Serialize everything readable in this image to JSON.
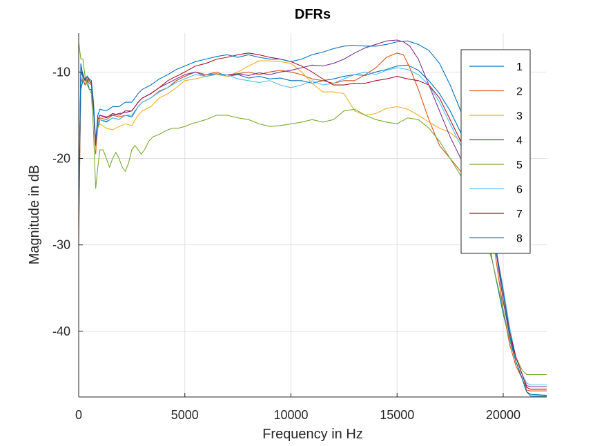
{
  "chart_data": {
    "type": "line",
    "title": "DFRs",
    "xlabel": "Frequency in Hz",
    "ylabel": "Magnitude in dB",
    "xlim": [
      0,
      22050
    ],
    "ylim": [
      -47.6,
      -5.5
    ],
    "xticks": [
      0,
      5000,
      10000,
      15000,
      20000
    ],
    "xtick_labels": [
      "0",
      "5000",
      "10000",
      "15000",
      "20000"
    ],
    "yticks": [
      -40,
      -30,
      -20,
      -10
    ],
    "ytick_labels": [
      "-40",
      "-30",
      "-20",
      "-10"
    ],
    "grid": true,
    "legend_position": "top-right",
    "series": [
      {
        "name": "1",
        "color": "#0072BD",
        "x": [
          0,
          100,
          200,
          300,
          400,
          500,
          600,
          700,
          800,
          900,
          1000,
          1300,
          1600,
          1900,
          2200,
          2500,
          2800,
          3000,
          3400,
          3800,
          4200,
          4600,
          5000,
          5500,
          6000,
          6500,
          7000,
          7500,
          8000,
          8500,
          9000,
          9500,
          10000,
          10500,
          11000,
          11500,
          12000,
          12500,
          13000,
          13500,
          14000,
          14500,
          15000,
          15500,
          16000,
          16500,
          17000,
          17500,
          18000,
          18500,
          19000,
          19500,
          20000,
          20300,
          20600,
          20900,
          21100,
          21300,
          22050
        ],
        "y": [
          -26.5,
          -12.0,
          -11.0,
          -11.5,
          -11.0,
          -12.0,
          -12.0,
          -14.5,
          -19.0,
          -16.5,
          -15.5,
          -15.8,
          -15.3,
          -15.5,
          -15.0,
          -15.2,
          -14.0,
          -13.5,
          -13.0,
          -12.3,
          -11.8,
          -11.0,
          -10.5,
          -10.0,
          -10.3,
          -10.2,
          -10.5,
          -10.3,
          -10.7,
          -10.5,
          -10.8,
          -10.7,
          -11.0,
          -11.0,
          -11.3,
          -11.0,
          -10.8,
          -10.5,
          -10.3,
          -10.4,
          -10.0,
          -9.7,
          -9.3,
          -9.2,
          -9.8,
          -11.0,
          -12.5,
          -14.5,
          -17.0,
          -20.5,
          -25.5,
          -32.0,
          -38.0,
          -41.0,
          -43.5,
          -45.5,
          -47.0,
          -47.3,
          -47.4
        ]
      },
      {
        "name": "2",
        "color": "#D95319",
        "x": [
          0,
          100,
          200,
          300,
          400,
          500,
          600,
          700,
          800,
          900,
          1000,
          1300,
          1600,
          1900,
          2200,
          2500,
          2800,
          3000,
          3400,
          3800,
          4200,
          4600,
          5000,
          5500,
          6000,
          6500,
          7000,
          7500,
          8000,
          8500,
          9000,
          9500,
          10000,
          10500,
          11000,
          11500,
          12000,
          12500,
          13000,
          13500,
          14000,
          14500,
          15000,
          15300,
          15600,
          16000,
          16500,
          17000,
          17500,
          18000,
          18500,
          19000,
          19500,
          20000,
          20300,
          20600,
          20900,
          21100,
          21300,
          22050
        ],
        "y": [
          -30.0,
          -11.2,
          -10.8,
          -11.5,
          -10.8,
          -11.3,
          -11.5,
          -14.0,
          -19.5,
          -16.0,
          -15.3,
          -15.5,
          -15.0,
          -15.2,
          -15.0,
          -15.0,
          -14.0,
          -13.5,
          -13.0,
          -12.2,
          -11.8,
          -11.0,
          -10.5,
          -10.0,
          -10.3,
          -10.0,
          -10.5,
          -10.2,
          -10.0,
          -10.3,
          -10.0,
          -9.8,
          -10.0,
          -10.3,
          -10.8,
          -11.0,
          -11.3,
          -11.0,
          -11.0,
          -10.3,
          -9.5,
          -8.3,
          -7.8,
          -8.0,
          -9.5,
          -12.0,
          -15.5,
          -18.5,
          -20.0,
          -21.5,
          -22.5,
          -24.5,
          -29.0,
          -37.5,
          -41.5,
          -44.0,
          -45.5,
          -46.8,
          -46.9,
          -46.9
        ]
      },
      {
        "name": "3",
        "color": "#EDB120",
        "x": [
          0,
          100,
          200,
          300,
          400,
          500,
          600,
          700,
          800,
          900,
          1000,
          1300,
          1600,
          1900,
          2200,
          2500,
          2800,
          3000,
          3400,
          3800,
          4200,
          4600,
          5000,
          5500,
          6000,
          6500,
          7000,
          7500,
          8000,
          8500,
          9000,
          9500,
          10000,
          10500,
          11000,
          11500,
          12000,
          12500,
          13000,
          13500,
          14000,
          14500,
          15000,
          15500,
          16000,
          16500,
          17000,
          17500,
          18000,
          18500,
          19000,
          19500,
          20000,
          20300,
          20600,
          20900,
          21100,
          21300,
          22050
        ],
        "y": [
          -27.0,
          -11.0,
          -10.5,
          -11.0,
          -10.5,
          -11.0,
          -11.3,
          -14.0,
          -19.0,
          -16.5,
          -16.0,
          -16.5,
          -16.7,
          -16.3,
          -16.0,
          -16.2,
          -15.0,
          -14.5,
          -14.0,
          -13.0,
          -12.5,
          -11.8,
          -11.0,
          -10.8,
          -10.5,
          -10.3,
          -10.5,
          -10.0,
          -9.3,
          -8.7,
          -8.7,
          -8.8,
          -9.0,
          -10.0,
          -11.3,
          -12.3,
          -12.3,
          -12.5,
          -14.5,
          -15.0,
          -14.8,
          -14.2,
          -14.0,
          -14.3,
          -15.0,
          -15.8,
          -16.5,
          -17.0,
          -18.0,
          -20.0,
          -23.0,
          -28.0,
          -36.0,
          -40.5,
          -43.5,
          -45.5,
          -46.5,
          -46.7,
          -46.7
        ]
      },
      {
        "name": "4",
        "color": "#7E2F8E",
        "x": [
          0,
          100,
          200,
          300,
          400,
          500,
          600,
          700,
          800,
          900,
          1000,
          1300,
          1600,
          1900,
          2200,
          2500,
          2800,
          3000,
          3400,
          3800,
          4200,
          4600,
          5000,
          5500,
          6000,
          6500,
          7000,
          7500,
          8000,
          8500,
          9000,
          9500,
          10000,
          10500,
          11000,
          11500,
          12000,
          12500,
          13000,
          13500,
          14000,
          14500,
          15000,
          15300,
          15600,
          16000,
          16500,
          17000,
          17500,
          18000,
          18500,
          19000,
          19500,
          20000,
          20300,
          20600,
          20900,
          21100,
          21300,
          22050
        ],
        "y": [
          -27.0,
          -9.5,
          -10.2,
          -11.0,
          -10.5,
          -11.0,
          -11.3,
          -14.0,
          -18.5,
          -15.5,
          -15.0,
          -15.2,
          -15.0,
          -14.8,
          -14.7,
          -14.5,
          -13.5,
          -13.0,
          -12.5,
          -11.8,
          -11.3,
          -10.8,
          -10.3,
          -10.0,
          -10.5,
          -10.2,
          -10.3,
          -10.2,
          -10.4,
          -10.1,
          -10.3,
          -10.0,
          -9.8,
          -9.5,
          -9.2,
          -9.3,
          -9.0,
          -8.5,
          -7.8,
          -7.2,
          -6.8,
          -6.4,
          -6.3,
          -6.5,
          -7.0,
          -8.5,
          -11.5,
          -14.5,
          -17.5,
          -20.0,
          -21.5,
          -23.5,
          -28.0,
          -36.5,
          -40.5,
          -43.0,
          -45.0,
          -46.3,
          -46.4,
          -46.4
        ]
      },
      {
        "name": "5",
        "color": "#77AC30",
        "x": [
          0,
          100,
          200,
          300,
          400,
          500,
          600,
          700,
          800,
          900,
          1000,
          1150,
          1300,
          1450,
          1600,
          1750,
          1900,
          2050,
          2200,
          2350,
          2500,
          2650,
          2800,
          2950,
          3100,
          3300,
          3500,
          3800,
          4100,
          4400,
          4700,
          5000,
          5300,
          5600,
          6000,
          6500,
          7000,
          7500,
          8000,
          8500,
          9000,
          9500,
          10000,
          10500,
          11000,
          11500,
          12000,
          12500,
          13000,
          13500,
          14000,
          14500,
          15000,
          15500,
          16000,
          16500,
          17000,
          17500,
          18000,
          18500,
          19000,
          19500,
          20000,
          20300,
          20600,
          20900,
          21100,
          21300,
          22050
        ],
        "y": [
          -6.5,
          -8.5,
          -8.5,
          -10.5,
          -11.5,
          -12.0,
          -12.5,
          -17.0,
          -23.5,
          -21.0,
          -19.0,
          -19.0,
          -20.0,
          -21.0,
          -20.0,
          -19.3,
          -20.0,
          -21.0,
          -21.5,
          -20.5,
          -19.0,
          -18.5,
          -19.0,
          -19.5,
          -19.0,
          -18.0,
          -17.5,
          -17.2,
          -16.8,
          -16.5,
          -16.5,
          -16.3,
          -16.0,
          -15.8,
          -15.5,
          -15.0,
          -15.0,
          -15.3,
          -15.5,
          -16.0,
          -16.3,
          -16.2,
          -16.0,
          -15.8,
          -15.5,
          -15.8,
          -15.5,
          -14.5,
          -14.3,
          -15.0,
          -15.5,
          -15.8,
          -16.0,
          -15.3,
          -15.5,
          -16.5,
          -18.0,
          -20.0,
          -22.0,
          -24.5,
          -28.0,
          -32.0,
          -37.5,
          -41.0,
          -43.0,
          -44.5,
          -45.0,
          -45.0,
          -45.0
        ]
      },
      {
        "name": "6",
        "color": "#4DBEEE",
        "x": [
          0,
          100,
          200,
          300,
          400,
          500,
          600,
          700,
          800,
          900,
          1000,
          1300,
          1600,
          1900,
          2200,
          2500,
          2800,
          3000,
          3400,
          3800,
          4200,
          4600,
          5000,
          5500,
          6000,
          6500,
          7000,
          7500,
          8000,
          8500,
          9000,
          9500,
          10000,
          10500,
          11000,
          11500,
          12000,
          12500,
          13000,
          13500,
          14000,
          14500,
          15000,
          15500,
          16000,
          16500,
          17000,
          17500,
          18000,
          18500,
          19000,
          19500,
          20000,
          20300,
          20600,
          20900,
          21100,
          21300,
          22050
        ],
        "y": [
          -26.0,
          -11.0,
          -10.5,
          -11.0,
          -10.5,
          -11.0,
          -11.3,
          -14.0,
          -18.5,
          -16.0,
          -15.5,
          -15.7,
          -15.3,
          -15.5,
          -15.0,
          -15.0,
          -14.0,
          -13.5,
          -13.0,
          -12.3,
          -11.8,
          -11.2,
          -10.8,
          -10.3,
          -10.5,
          -10.2,
          -10.3,
          -10.8,
          -11.0,
          -11.2,
          -11.0,
          -11.5,
          -11.8,
          -11.5,
          -11.0,
          -11.5,
          -11.3,
          -10.8,
          -10.3,
          -10.0,
          -10.3,
          -9.8,
          -9.5,
          -9.7,
          -10.3,
          -11.5,
          -13.5,
          -16.0,
          -18.5,
          -21.0,
          -24.0,
          -28.5,
          -35.0,
          -39.5,
          -43.0,
          -45.0,
          -46.0,
          -46.2,
          -46.2
        ]
      },
      {
        "name": "7",
        "color": "#A2142F",
        "x": [
          0,
          100,
          200,
          300,
          400,
          500,
          600,
          700,
          800,
          900,
          1000,
          1300,
          1600,
          1900,
          2200,
          2500,
          2800,
          3000,
          3400,
          3800,
          4200,
          4600,
          5000,
          5500,
          6000,
          6500,
          7000,
          7500,
          8000,
          8500,
          9000,
          9500,
          10000,
          10500,
          11000,
          11500,
          12000,
          12500,
          13000,
          13500,
          14000,
          14500,
          15000,
          15500,
          16000,
          16500,
          17000,
          17500,
          18000,
          18500,
          19000,
          19500,
          20000,
          20300,
          20600,
          20900,
          21100,
          21300,
          22050
        ],
        "y": [
          -26.0,
          -10.0,
          -10.5,
          -11.0,
          -10.5,
          -11.0,
          -11.3,
          -14.0,
          -18.5,
          -15.5,
          -15.0,
          -15.3,
          -14.8,
          -15.0,
          -14.5,
          -14.5,
          -13.5,
          -13.0,
          -12.5,
          -11.8,
          -11.0,
          -10.5,
          -10.0,
          -9.3,
          -9.0,
          -8.5,
          -8.3,
          -8.0,
          -7.8,
          -8.0,
          -8.3,
          -8.5,
          -8.8,
          -9.3,
          -10.0,
          -10.8,
          -11.5,
          -11.5,
          -11.3,
          -11.3,
          -11.0,
          -10.8,
          -10.5,
          -10.8,
          -11.0,
          -11.5,
          -13.0,
          -15.5,
          -18.0,
          -20.5,
          -23.5,
          -28.0,
          -35.5,
          -40.0,
          -43.0,
          -45.0,
          -46.5,
          -46.7,
          -46.7
        ]
      },
      {
        "name": "8",
        "color": "#0072BD",
        "x": [
          0,
          100,
          200,
          300,
          400,
          500,
          600,
          700,
          800,
          900,
          1000,
          1300,
          1600,
          1900,
          2200,
          2500,
          2800,
          3000,
          3400,
          3800,
          4200,
          4600,
          5000,
          5500,
          6000,
          6500,
          7000,
          7500,
          8000,
          8500,
          9000,
          9500,
          10000,
          10500,
          11000,
          11500,
          12000,
          12500,
          13000,
          13500,
          14000,
          14500,
          15000,
          15500,
          16000,
          16500,
          17000,
          17500,
          18000,
          18500,
          19000,
          19500,
          20000,
          20300,
          20600,
          20900,
          21100,
          21300,
          22050
        ],
        "y": [
          -27.0,
          -9.0,
          -10.5,
          -10.8,
          -10.5,
          -10.8,
          -11.0,
          -13.5,
          -18.0,
          -15.0,
          -14.3,
          -14.5,
          -14.0,
          -14.0,
          -13.5,
          -13.5,
          -12.5,
          -12.0,
          -11.5,
          -10.8,
          -10.3,
          -9.7,
          -9.3,
          -8.8,
          -8.5,
          -8.2,
          -8.0,
          -8.3,
          -8.0,
          -8.3,
          -8.5,
          -8.5,
          -8.8,
          -8.5,
          -8.0,
          -7.7,
          -7.3,
          -7.0,
          -6.9,
          -7.0,
          -7.0,
          -6.8,
          -6.5,
          -6.4,
          -6.8,
          -7.5,
          -9.0,
          -11.5,
          -14.5,
          -18.0,
          -22.5,
          -28.5,
          -35.5,
          -40.5,
          -43.5,
          -45.5,
          -47.0,
          -47.5,
          -47.5
        ]
      }
    ]
  }
}
